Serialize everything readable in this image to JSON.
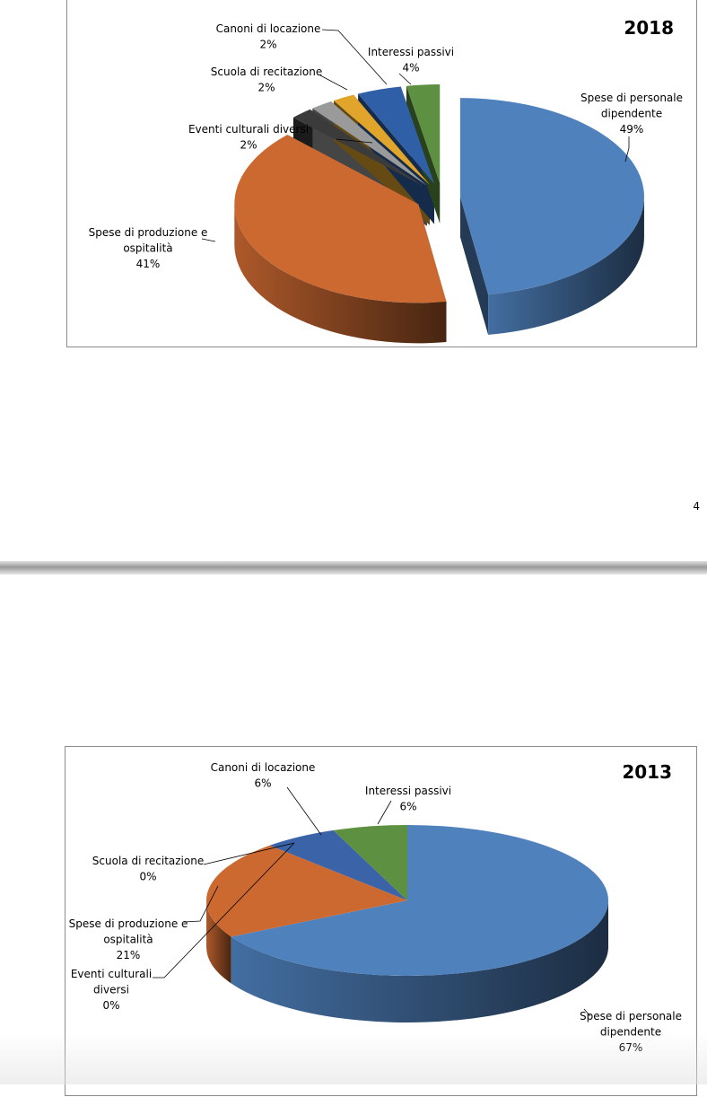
{
  "page": {
    "page_number": "4"
  },
  "chart_data": [
    {
      "type": "pie",
      "title": "2018",
      "slices": [
        {
          "label": [
            "Spese di personale",
            "dipendente"
          ],
          "pct": "49%",
          "value": 49,
          "color": "#4f81bd"
        },
        {
          "label": [
            "Spese di produzione e",
            "ospitalità"
          ],
          "pct": "41%",
          "value": 41,
          "color": "#cb6931"
        },
        {
          "label": [
            "Eventi culturali diversi"
          ],
          "pct": "2%",
          "value": 2,
          "color": "#3b3b3b"
        },
        {
          "label": [
            "Scuola di recitazione"
          ],
          "pct": "2%",
          "value": 2,
          "color": "#9a9a9a"
        },
        {
          "label": [
            "Canoni di locazione"
          ],
          "pct": "2%",
          "value": 2,
          "color": "#e0a52a"
        },
        {
          "label": [
            "Interessi passivi"
          ],
          "pct": "4%",
          "value": 4,
          "color": "#2f5fa7"
        },
        {
          "label": [],
          "pct": "",
          "value": 3,
          "color": "#5d9040"
        }
      ]
    },
    {
      "type": "pie",
      "title": "2013",
      "slices": [
        {
          "label": [
            "Spese di personale",
            "dipendente"
          ],
          "pct": "67%",
          "value": 67,
          "color": "#4f81bd"
        },
        {
          "label": [
            "Spese di produzione e",
            "ospitalità"
          ],
          "pct": "21%",
          "value": 21,
          "color": "#cb6931"
        },
        {
          "label": [
            "Eventi culturali",
            "diversi"
          ],
          "pct": "0%",
          "value": 0,
          "color": "#3b3b3b"
        },
        {
          "label": [
            "Scuola di recitazione"
          ],
          "pct": "0%",
          "value": 0,
          "color": "#9a9a9a"
        },
        {
          "label": [
            "Canoni di locazione"
          ],
          "pct": "6%",
          "value": 6,
          "color": "#3b63a8"
        },
        {
          "label": [
            "Interessi passivi"
          ],
          "pct": "6%",
          "value": 6,
          "color": "#5d9040"
        }
      ]
    }
  ]
}
